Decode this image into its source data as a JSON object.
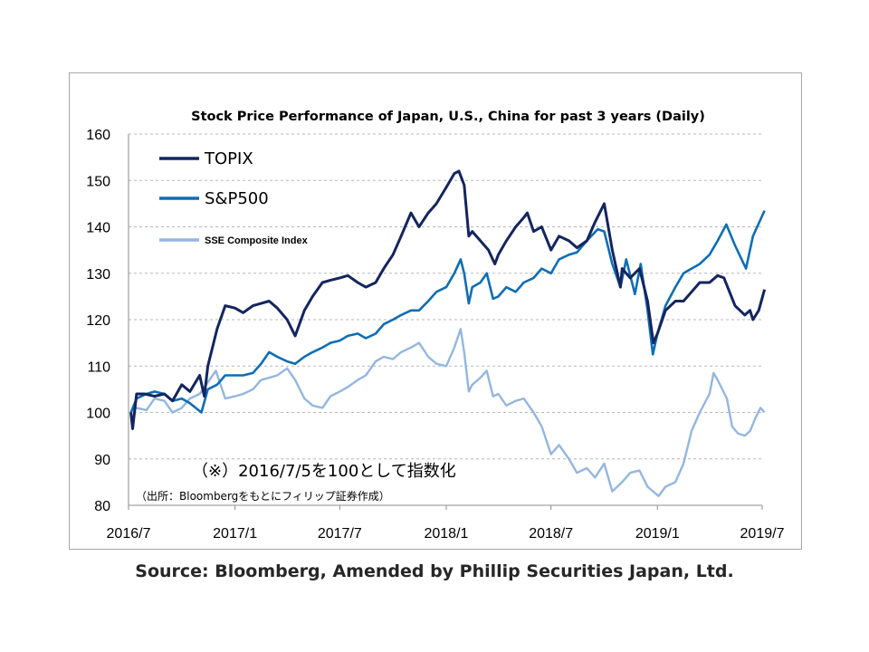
{
  "source": "Source: Bloomberg, Amended by Phillip Securities Japan, Ltd.",
  "chart_data": {
    "type": "line",
    "title": "Stock Price Performance of Japan, U.S., China for past 3 years (Daily)",
    "xlabel": "",
    "ylabel": "",
    "x_tick_labels": [
      "2016/7",
      "2017/1",
      "2017/7",
      "2018/1",
      "2018/7",
      "2019/1",
      "2019/7"
    ],
    "x_ticks": [
      "2016-07-01",
      "2017-01-01",
      "2017-07-01",
      "2018-01-01",
      "2018-07-01",
      "2019-01-01",
      "2019-07-01"
    ],
    "xlim": [
      "2016-07-01",
      "2019-07-01"
    ],
    "ylim": [
      80,
      160
    ],
    "y_ticks": [
      80,
      90,
      100,
      110,
      120,
      130,
      140,
      150,
      160
    ],
    "grid": "horizontal dashed",
    "legend_position": "top-left",
    "annotations": [
      "（※）2016/7/5を100として指数化",
      "（出所：Bloombergをもとにフィリップ証券作成）"
    ],
    "series": [
      {
        "name": "TOPIX",
        "color": "#14255e",
        "points": [
          [
            "2016-07-05",
            100
          ],
          [
            "2016-07-08",
            96.5
          ],
          [
            "2016-07-15",
            104
          ],
          [
            "2016-07-29",
            104
          ],
          [
            "2016-08-15",
            103.5
          ],
          [
            "2016-09-01",
            104
          ],
          [
            "2016-09-15",
            102.5
          ],
          [
            "2016-10-01",
            106
          ],
          [
            "2016-10-15",
            104.5
          ],
          [
            "2016-11-01",
            108
          ],
          [
            "2016-11-09",
            103.5
          ],
          [
            "2016-11-15",
            110
          ],
          [
            "2016-12-01",
            118
          ],
          [
            "2016-12-15",
            123
          ],
          [
            "2017-01-01",
            122.5
          ],
          [
            "2017-01-15",
            121.5
          ],
          [
            "2017-02-01",
            123
          ],
          [
            "2017-02-15",
            123.5
          ],
          [
            "2017-03-01",
            124
          ],
          [
            "2017-03-15",
            122.5
          ],
          [
            "2017-04-01",
            120
          ],
          [
            "2017-04-15",
            116.5
          ],
          [
            "2017-05-01",
            122
          ],
          [
            "2017-05-15",
            125
          ],
          [
            "2017-06-01",
            128
          ],
          [
            "2017-06-15",
            128.5
          ],
          [
            "2017-07-01",
            129
          ],
          [
            "2017-07-15",
            129.5
          ],
          [
            "2017-08-01",
            128
          ],
          [
            "2017-08-15",
            127
          ],
          [
            "2017-09-01",
            128
          ],
          [
            "2017-09-15",
            131
          ],
          [
            "2017-10-01",
            134
          ],
          [
            "2017-10-15",
            138
          ],
          [
            "2017-11-01",
            143
          ],
          [
            "2017-11-15",
            140
          ],
          [
            "2017-12-01",
            143
          ],
          [
            "2017-12-15",
            145
          ],
          [
            "2018-01-01",
            148.5
          ],
          [
            "2018-01-15",
            151.5
          ],
          [
            "2018-01-23",
            152
          ],
          [
            "2018-02-01",
            149
          ],
          [
            "2018-02-09",
            138
          ],
          [
            "2018-02-15",
            139
          ],
          [
            "2018-03-01",
            137
          ],
          [
            "2018-03-15",
            135
          ],
          [
            "2018-03-26",
            132
          ],
          [
            "2018-04-01",
            134
          ],
          [
            "2018-04-15",
            137
          ],
          [
            "2018-05-01",
            140
          ],
          [
            "2018-05-15",
            142
          ],
          [
            "2018-05-21",
            143
          ],
          [
            "2018-06-01",
            139
          ],
          [
            "2018-06-15",
            140
          ],
          [
            "2018-07-01",
            135
          ],
          [
            "2018-07-15",
            138
          ],
          [
            "2018-08-01",
            137
          ],
          [
            "2018-08-15",
            135.5
          ],
          [
            "2018-09-01",
            137
          ],
          [
            "2018-09-15",
            141
          ],
          [
            "2018-10-01",
            145
          ],
          [
            "2018-10-15",
            135
          ],
          [
            "2018-10-29",
            127
          ],
          [
            "2018-11-01",
            131
          ],
          [
            "2018-11-15",
            129
          ],
          [
            "2018-12-01",
            131
          ],
          [
            "2018-12-15",
            124
          ],
          [
            "2018-12-25",
            115
          ],
          [
            "2019-01-01",
            117
          ],
          [
            "2019-01-15",
            122
          ],
          [
            "2019-02-01",
            124
          ],
          [
            "2019-02-15",
            124
          ],
          [
            "2019-03-01",
            126
          ],
          [
            "2019-03-15",
            128
          ],
          [
            "2019-04-01",
            128
          ],
          [
            "2019-04-15",
            129.5
          ],
          [
            "2019-04-26",
            129
          ],
          [
            "2019-05-15",
            123
          ],
          [
            "2019-06-01",
            121
          ],
          [
            "2019-06-10",
            122
          ],
          [
            "2019-06-15",
            120
          ],
          [
            "2019-06-25",
            122
          ],
          [
            "2019-07-05",
            126.5
          ]
        ]
      },
      {
        "name": "S&P500",
        "color": "#0f6db4",
        "points": [
          [
            "2016-07-05",
            100
          ],
          [
            "2016-07-15",
            103
          ],
          [
            "2016-08-01",
            104
          ],
          [
            "2016-08-15",
            104.5
          ],
          [
            "2016-09-01",
            104
          ],
          [
            "2016-09-15",
            102.5
          ],
          [
            "2016-10-01",
            103
          ],
          [
            "2016-10-15",
            102
          ],
          [
            "2016-11-04",
            100
          ],
          [
            "2016-11-15",
            105
          ],
          [
            "2016-12-01",
            106
          ],
          [
            "2016-12-15",
            108
          ],
          [
            "2017-01-01",
            108
          ],
          [
            "2017-01-15",
            108
          ],
          [
            "2017-02-01",
            108.5
          ],
          [
            "2017-02-15",
            110.5
          ],
          [
            "2017-03-01",
            113
          ],
          [
            "2017-03-15",
            112
          ],
          [
            "2017-04-01",
            111
          ],
          [
            "2017-04-15",
            110.5
          ],
          [
            "2017-05-01",
            112
          ],
          [
            "2017-05-15",
            113
          ],
          [
            "2017-06-01",
            114
          ],
          [
            "2017-06-15",
            115
          ],
          [
            "2017-07-01",
            115.5
          ],
          [
            "2017-07-15",
            116.5
          ],
          [
            "2017-08-01",
            117
          ],
          [
            "2017-08-15",
            116
          ],
          [
            "2017-09-01",
            117
          ],
          [
            "2017-09-15",
            119
          ],
          [
            "2017-10-01",
            120
          ],
          [
            "2017-10-15",
            121
          ],
          [
            "2017-11-01",
            122
          ],
          [
            "2017-11-15",
            122
          ],
          [
            "2017-12-01",
            124
          ],
          [
            "2017-12-15",
            126
          ],
          [
            "2018-01-01",
            127
          ],
          [
            "2018-01-15",
            130
          ],
          [
            "2018-01-26",
            133
          ],
          [
            "2018-02-01",
            130
          ],
          [
            "2018-02-09",
            123.5
          ],
          [
            "2018-02-15",
            127
          ],
          [
            "2018-03-01",
            128
          ],
          [
            "2018-03-12",
            130
          ],
          [
            "2018-03-23",
            124.5
          ],
          [
            "2018-04-01",
            125
          ],
          [
            "2018-04-15",
            127
          ],
          [
            "2018-05-01",
            126
          ],
          [
            "2018-05-15",
            128
          ],
          [
            "2018-06-01",
            129
          ],
          [
            "2018-06-15",
            131
          ],
          [
            "2018-07-01",
            130
          ],
          [
            "2018-07-15",
            133
          ],
          [
            "2018-08-01",
            134
          ],
          [
            "2018-08-15",
            134.5
          ],
          [
            "2018-09-01",
            137
          ],
          [
            "2018-09-20",
            139.5
          ],
          [
            "2018-10-01",
            139
          ],
          [
            "2018-10-15",
            132
          ],
          [
            "2018-10-29",
            127
          ],
          [
            "2018-11-08",
            133
          ],
          [
            "2018-11-23",
            125.5
          ],
          [
            "2018-12-03",
            132
          ],
          [
            "2018-12-15",
            122
          ],
          [
            "2018-12-24",
            112.5
          ],
          [
            "2019-01-01",
            117
          ],
          [
            "2019-01-15",
            123
          ],
          [
            "2019-02-01",
            127
          ],
          [
            "2019-02-15",
            130
          ],
          [
            "2019-03-01",
            131
          ],
          [
            "2019-03-15",
            132
          ],
          [
            "2019-04-01",
            134
          ],
          [
            "2019-04-15",
            137
          ],
          [
            "2019-04-30",
            140.5
          ],
          [
            "2019-05-15",
            136
          ],
          [
            "2019-06-03",
            131
          ],
          [
            "2019-06-15",
            138
          ],
          [
            "2019-07-05",
            143.5
          ]
        ]
      },
      {
        "name": "SSE Composite Index",
        "color": "#94b6df",
        "points": [
          [
            "2016-07-05",
            100
          ],
          [
            "2016-07-15",
            101
          ],
          [
            "2016-08-01",
            100.5
          ],
          [
            "2016-08-15",
            103
          ],
          [
            "2016-09-01",
            102.5
          ],
          [
            "2016-09-15",
            100
          ],
          [
            "2016-10-01",
            101
          ],
          [
            "2016-10-15",
            103
          ],
          [
            "2016-11-01",
            104
          ],
          [
            "2016-11-15",
            106.5
          ],
          [
            "2016-11-29",
            109
          ],
          [
            "2016-12-15",
            103
          ],
          [
            "2017-01-01",
            103.5
          ],
          [
            "2017-01-15",
            104
          ],
          [
            "2017-02-01",
            105
          ],
          [
            "2017-02-15",
            107
          ],
          [
            "2017-03-01",
            107.5
          ],
          [
            "2017-03-15",
            108
          ],
          [
            "2017-04-01",
            109.5
          ],
          [
            "2017-04-15",
            107
          ],
          [
            "2017-05-01",
            103
          ],
          [
            "2017-05-15",
            101.5
          ],
          [
            "2017-06-01",
            101
          ],
          [
            "2017-06-15",
            103.5
          ],
          [
            "2017-07-01",
            104.5
          ],
          [
            "2017-07-15",
            105.5
          ],
          [
            "2017-08-01",
            107
          ],
          [
            "2017-08-15",
            108
          ],
          [
            "2017-09-01",
            111
          ],
          [
            "2017-09-15",
            112
          ],
          [
            "2017-10-01",
            111.5
          ],
          [
            "2017-10-15",
            113
          ],
          [
            "2017-11-01",
            114
          ],
          [
            "2017-11-15",
            115
          ],
          [
            "2017-12-01",
            112
          ],
          [
            "2017-12-15",
            110.5
          ],
          [
            "2018-01-01",
            110
          ],
          [
            "2018-01-15",
            114
          ],
          [
            "2018-01-26",
            118
          ],
          [
            "2018-02-01",
            113
          ],
          [
            "2018-02-09",
            104.5
          ],
          [
            "2018-02-15",
            106
          ],
          [
            "2018-03-01",
            107.5
          ],
          [
            "2018-03-12",
            109
          ],
          [
            "2018-03-23",
            103.5
          ],
          [
            "2018-04-01",
            104
          ],
          [
            "2018-04-15",
            101.5
          ],
          [
            "2018-05-01",
            102.5
          ],
          [
            "2018-05-15",
            103
          ],
          [
            "2018-06-01",
            100
          ],
          [
            "2018-06-15",
            97
          ],
          [
            "2018-07-01",
            91
          ],
          [
            "2018-07-15",
            93
          ],
          [
            "2018-08-01",
            90
          ],
          [
            "2018-08-15",
            87
          ],
          [
            "2018-09-01",
            88
          ],
          [
            "2018-09-15",
            86
          ],
          [
            "2018-10-01",
            89
          ],
          [
            "2018-10-15",
            83
          ],
          [
            "2018-11-01",
            85
          ],
          [
            "2018-11-15",
            87
          ],
          [
            "2018-12-01",
            87.5
          ],
          [
            "2018-12-15",
            84
          ],
          [
            "2019-01-03",
            82
          ],
          [
            "2019-01-15",
            84
          ],
          [
            "2019-02-01",
            85
          ],
          [
            "2019-02-15",
            89
          ],
          [
            "2019-03-01",
            96
          ],
          [
            "2019-03-15",
            100
          ],
          [
            "2019-04-01",
            104
          ],
          [
            "2019-04-08",
            108.5
          ],
          [
            "2019-04-15",
            107
          ],
          [
            "2019-05-01",
            103
          ],
          [
            "2019-05-10",
            97
          ],
          [
            "2019-05-20",
            95.5
          ],
          [
            "2019-06-01",
            95
          ],
          [
            "2019-06-10",
            96
          ],
          [
            "2019-06-20",
            99
          ],
          [
            "2019-06-28",
            101
          ],
          [
            "2019-07-05",
            100
          ]
        ]
      }
    ]
  }
}
